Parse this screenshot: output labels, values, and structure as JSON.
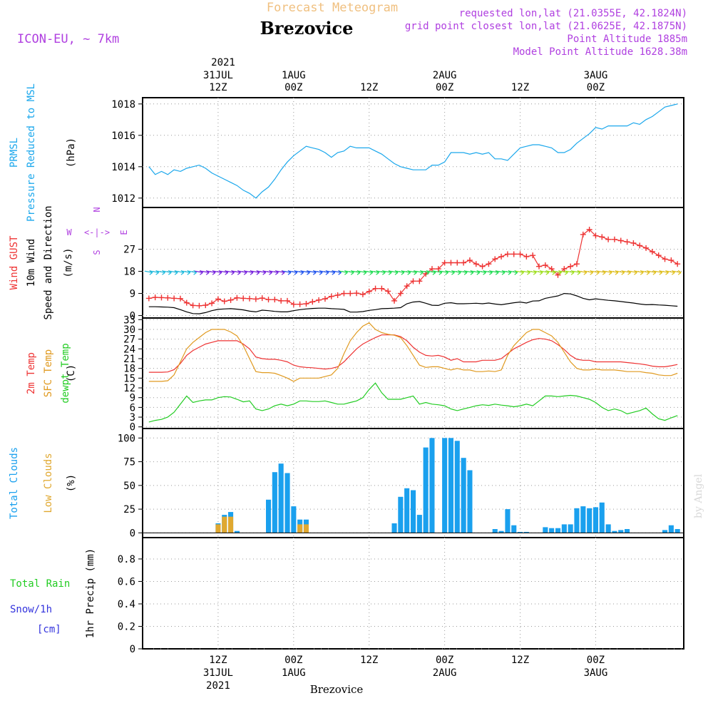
{
  "colors": {
    "pressure": "#1aa7ec",
    "gust": "#ee3333",
    "wind_speed": "#000000",
    "temp2m": "#ee3333",
    "sfc_temp": "#e09a20",
    "dewpoint": "#22cc22",
    "total_clouds": "#1aa0ee",
    "low_clouds": "#e0a830",
    "rain": "#22cc22",
    "snow": "#3333dd",
    "header_info": "#b040e0",
    "title_faded": "#f0c080",
    "grid": "#999999"
  },
  "header": {
    "title_faded": "Forecast Meteogram",
    "station": "Brezovice",
    "model": "ICON-EU, ~ 7km",
    "requested": "requested lon,lat (21.0355E, 42.1824N)",
    "grid_point": "grid point closest lon,lat (21.0625E, 42.1875N)",
    "point_altitude": "Point Altitude 1885m",
    "model_altitude": "Model Point Altitude 1628.38m",
    "watermark": "by Angel"
  },
  "time_axis": {
    "top_year": "2021",
    "top_labels": [
      {
        "h": 12,
        "l1": "31JUL",
        "l2": "12Z"
      },
      {
        "h": 24,
        "l1": "1AUG",
        "l2": "00Z"
      },
      {
        "h": 36,
        "l1": "",
        "l2": "12Z"
      },
      {
        "h": 48,
        "l1": "2AUG",
        "l2": "00Z"
      },
      {
        "h": 60,
        "l1": "",
        "l2": "12Z"
      },
      {
        "h": 72,
        "l1": "3AUG",
        "l2": "00Z"
      }
    ],
    "bottom_labels": [
      {
        "h": 12,
        "l1": "12Z",
        "l2": "31JUL",
        "l3": "2021"
      },
      {
        "h": 24,
        "l1": "00Z",
        "l2": "1AUG",
        "l3": ""
      },
      {
        "h": 36,
        "l1": "12Z",
        "l2": "",
        "l3": ""
      },
      {
        "h": 48,
        "l1": "00Z",
        "l2": "2AUG",
        "l3": ""
      },
      {
        "h": 60,
        "l1": "12Z",
        "l2": "",
        "l3": ""
      },
      {
        "h": 72,
        "l1": "00Z",
        "l2": "3AUG",
        "l3": ""
      }
    ],
    "footer_station": "Brezovice"
  },
  "wind_compass": {
    "w": "W",
    "e": "E",
    "n": "N",
    "s": "S",
    "sep": "<-|->"
  },
  "chart_data": [
    {
      "type": "line",
      "id": "pressure",
      "title": "PRMSL Pressure Reduced to MSL",
      "label_lines": [
        "PRMSL",
        "Pressure Reduced to MSL"
      ],
      "ylabel": "(hPa)",
      "ylim": [
        1011.4,
        1018.4
      ],
      "yticks": [
        1012,
        1014,
        1016,
        1018
      ],
      "hours_start": 1,
      "hours_step": 1,
      "series": [
        {
          "name": "PRMSL",
          "color_key": "pressure",
          "values": [
            1014.0,
            1013.5,
            1013.7,
            1013.5,
            1013.8,
            1013.7,
            1013.9,
            1014.0,
            1014.1,
            1013.9,
            1013.6,
            1013.4,
            1013.2,
            1013.0,
            1012.8,
            1012.5,
            1012.3,
            1012.0,
            1012.4,
            1012.7,
            1013.2,
            1013.8,
            1014.3,
            1014.7,
            1015.0,
            1015.3,
            1015.2,
            1015.1,
            1014.9,
            1014.6,
            1014.9,
            1015.0,
            1015.3,
            1015.2,
            1015.2,
            1015.2,
            1015.0,
            1014.8,
            1014.5,
            1014.2,
            1014.0,
            1013.9,
            1013.8,
            1013.8,
            1013.8,
            1014.1,
            1014.1,
            1014.3,
            1014.9,
            1014.9,
            1014.9,
            1014.8,
            1014.9,
            1014.8,
            1014.9,
            1014.5,
            1014.5,
            1014.4,
            1014.8,
            1015.2,
            1015.3,
            1015.4,
            1015.4,
            1015.3,
            1015.2,
            1014.9,
            1014.9,
            1015.1,
            1015.5,
            1015.8,
            1016.1,
            1016.5,
            1016.4,
            1016.6,
            1016.6,
            1016.6,
            1016.6,
            1016.8,
            1016.7,
            1017.0,
            1017.2,
            1017.5,
            1017.8,
            1017.9,
            1018.0
          ]
        }
      ]
    },
    {
      "type": "line",
      "id": "wind",
      "title": "Wind GUST / 10m Wind Speed and Direction",
      "label_lines": [
        "Wind GUST",
        "10m Wind",
        "Speed and Direction"
      ],
      "ylabel": "(m/s)",
      "ylim": [
        -1,
        44
      ],
      "yticks": [
        0,
        9,
        18,
        27
      ],
      "hours_start": 1,
      "hours_step": 1,
      "series": [
        {
          "name": "Wind GUST",
          "color_key": "gust",
          "marker": "plus",
          "values": [
            7,
            7.4,
            7.3,
            7.2,
            7.0,
            6.9,
            5.2,
            4.1,
            4.0,
            4.2,
            5.0,
            6.7,
            5.8,
            6.3,
            7.2,
            7.0,
            6.9,
            6.7,
            7.1,
            6.5,
            6.5,
            6.0,
            6.0,
            4.6,
            4.6,
            4.8,
            5.6,
            6.3,
            6.8,
            7.8,
            8.3,
            9.0,
            9.0,
            9.1,
            8.6,
            9.8,
            11.0,
            11.0,
            9.9,
            6.0,
            9.0,
            12.0,
            14.0,
            14.0,
            17.0,
            19.0,
            19.0,
            21.5,
            21.5,
            21.5,
            21.5,
            22.5,
            21.0,
            20.0,
            21.0,
            23.0,
            24.0,
            25.0,
            25.0,
            25.0,
            24.0,
            24.5,
            20.0,
            20.5,
            19.0,
            16.5,
            19.0,
            20.0,
            21.0,
            33.0,
            35.0,
            32.5,
            32.0,
            31.0,
            31.0,
            30.5,
            30.0,
            29.5,
            28.5,
            27.5,
            26.0,
            24.5,
            23.0,
            22.5,
            21.0
          ]
        },
        {
          "name": "10m Wind Speed",
          "color_key": "wind_speed",
          "values": [
            3.6,
            3.6,
            3.5,
            3.4,
            3.2,
            2.4,
            1.5,
            0.8,
            0.7,
            1.2,
            2.0,
            2.5,
            2.7,
            2.8,
            2.6,
            2.3,
            1.8,
            1.5,
            2.2,
            2.0,
            1.7,
            1.5,
            1.5,
            2.0,
            2.4,
            2.7,
            2.9,
            3.0,
            3.0,
            2.8,
            2.7,
            2.5,
            1.4,
            1.4,
            1.6,
            2.1,
            2.4,
            2.8,
            2.9,
            3.0,
            3.2,
            4.8,
            5.5,
            5.7,
            5.0,
            4.2,
            4.1,
            5.0,
            5.2,
            4.8,
            4.8,
            4.9,
            5.0,
            4.8,
            5.1,
            4.7,
            4.4,
            4.8,
            5.2,
            5.5,
            5.1,
            5.9,
            6.0,
            7.0,
            7.5,
            8.0,
            9.0,
            8.8,
            8.0,
            7.0,
            6.4,
            6.8,
            6.5,
            6.2,
            6.0,
            5.7,
            5.4,
            5.1,
            4.7,
            4.4,
            4.5,
            4.3,
            4.2,
            4.0,
            3.8
          ]
        }
      ],
      "direction_barbs_y": 17.5
    },
    {
      "type": "line",
      "id": "temperature",
      "title": "2m Temp / SFC Temp / dewpt Temp",
      "label_lines": [
        "2m Temp",
        "SFC Temp",
        "dewpt Temp"
      ],
      "ylabel": "(C)",
      "ylim": [
        -0.5,
        33.5
      ],
      "yticks": [
        0,
        3,
        6,
        9,
        12,
        15,
        18,
        21,
        24,
        27,
        30,
        33
      ],
      "hours_start": 1,
      "hours_step": 1,
      "series": [
        {
          "name": "2m Temp",
          "color_key": "temp2m",
          "values": [
            16.8,
            16.8,
            16.8,
            16.9,
            17.6,
            19.5,
            22.0,
            23.5,
            24.5,
            25.5,
            26.0,
            26.5,
            26.5,
            26.5,
            26.5,
            25.5,
            24.0,
            21.5,
            21.0,
            20.8,
            20.8,
            20.5,
            20.0,
            19.0,
            18.5,
            18.3,
            18.2,
            18.0,
            17.8,
            18.0,
            18.5,
            20.0,
            22.0,
            24.0,
            25.5,
            26.5,
            27.5,
            28.3,
            28.3,
            28.3,
            27.8,
            26.5,
            24.5,
            23.0,
            22.0,
            21.8,
            22.0,
            21.5,
            20.5,
            21.0,
            20.0,
            20.0,
            20.0,
            20.5,
            20.5,
            20.5,
            21.0,
            22.5,
            24.0,
            25.0,
            26.0,
            26.8,
            27.2,
            27.0,
            26.5,
            25.3,
            23.8,
            22.0,
            20.8,
            20.5,
            20.5,
            20.0,
            20.0,
            20.0,
            20.0,
            20.0,
            19.8,
            19.6,
            19.4,
            19.1,
            18.7,
            18.5,
            18.5,
            18.8,
            19.2
          ]
        },
        {
          "name": "SFC Temp",
          "color_key": "sfc_temp",
          "values": [
            14.0,
            14.0,
            14.0,
            14.2,
            16.0,
            20.0,
            24.0,
            26.0,
            27.5,
            29.0,
            30.0,
            30.0,
            30.0,
            29.2,
            28.0,
            25.0,
            21.0,
            17.0,
            16.7,
            16.7,
            16.5,
            15.8,
            15.0,
            14.0,
            15.0,
            15.0,
            15.0,
            15.0,
            15.5,
            16.0,
            18.0,
            22.5,
            26.5,
            29.0,
            31.0,
            32.0,
            30.0,
            29.0,
            28.5,
            28.2,
            27.5,
            25.0,
            22.0,
            19.0,
            18.3,
            18.5,
            18.5,
            18.0,
            17.5,
            18.0,
            17.5,
            17.5,
            17.0,
            17.0,
            17.2,
            17.0,
            17.5,
            22.0,
            25.0,
            27.0,
            29.0,
            30.0,
            30.0,
            29.0,
            28.0,
            26.0,
            23.0,
            20.0,
            18.0,
            17.5,
            17.5,
            17.8,
            17.5,
            17.5,
            17.5,
            17.3,
            17.0,
            17.0,
            17.0,
            16.7,
            16.5,
            16.0,
            15.8,
            15.8,
            16.5
          ]
        },
        {
          "name": "dewpt Temp",
          "color_key": "dewpoint",
          "values": [
            1.5,
            2.0,
            2.3,
            3.0,
            4.5,
            7.0,
            9.5,
            7.5,
            8.0,
            8.3,
            8.3,
            9.0,
            9.3,
            9.2,
            8.5,
            7.7,
            8.0,
            5.5,
            5.0,
            5.5,
            6.5,
            7.0,
            6.5,
            7.0,
            8.0,
            8.0,
            7.8,
            7.8,
            8.0,
            7.5,
            7.0,
            7.0,
            7.5,
            8.0,
            9.0,
            11.5,
            13.5,
            10.5,
            8.5,
            8.5,
            8.5,
            9.0,
            9.5,
            7.0,
            7.5,
            7.0,
            6.8,
            6.5,
            5.5,
            5.0,
            5.5,
            6.0,
            6.5,
            6.8,
            6.6,
            7.0,
            6.7,
            6.5,
            6.2,
            6.5,
            7.0,
            6.5,
            8.0,
            9.5,
            9.5,
            9.3,
            9.5,
            9.7,
            9.5,
            9.0,
            8.5,
            7.5,
            6.0,
            5.0,
            5.5,
            5.0,
            4.0,
            4.5,
            5.0,
            5.8,
            4.0,
            2.5,
            2.0,
            2.8,
            3.5
          ]
        }
      ]
    },
    {
      "type": "bar",
      "id": "clouds",
      "title": "Total Clouds / Low Clouds",
      "label_lines": [
        "Total Clouds",
        "Low Clouds"
      ],
      "ylabel": "(%)",
      "ylim": [
        -5,
        110
      ],
      "yticks": [
        0,
        25,
        50,
        75,
        100
      ],
      "hours_start": 1,
      "hours_step": 1,
      "series": [
        {
          "name": "Total Clouds",
          "color_key": "total_clouds",
          "values": [
            0,
            0,
            0,
            0,
            0,
            0,
            0,
            0,
            0,
            0,
            0,
            10,
            19,
            22,
            2,
            0,
            0,
            0,
            0,
            35,
            64,
            73,
            63,
            28,
            14,
            14,
            0,
            0,
            0,
            0,
            0,
            0,
            0,
            0,
            0,
            0,
            0,
            0,
            0,
            10,
            38,
            47,
            45,
            19,
            90,
            100,
            0,
            100,
            100,
            97,
            79,
            66,
            0,
            0,
            0,
            4,
            2,
            25,
            8,
            1,
            1,
            0,
            0,
            6,
            5,
            5,
            9,
            9,
            26,
            28,
            26,
            27,
            32,
            9,
            2,
            3,
            4,
            0,
            0,
            0,
            0,
            0,
            3,
            8,
            4
          ]
        },
        {
          "name": "Low Clouds",
          "color_key": "low_clouds",
          "values": [
            0,
            0,
            0,
            0,
            0,
            0,
            0,
            0,
            0,
            0,
            0,
            9,
            17,
            17,
            0,
            0,
            0,
            0,
            0,
            0,
            0,
            0,
            0,
            0,
            9,
            9,
            0,
            0,
            0,
            0,
            0,
            0,
            0,
            0,
            0,
            0,
            0,
            0,
            0,
            0,
            0,
            0,
            0,
            0,
            0,
            0,
            0,
            0,
            0,
            0,
            0,
            0,
            0,
            0,
            0,
            0,
            0,
            0,
            0,
            0,
            0,
            0,
            0,
            0,
            0,
            0,
            0,
            0,
            0,
            0,
            0,
            0,
            0,
            0,
            0,
            0,
            0,
            0,
            0,
            0,
            0,
            0,
            0,
            0,
            0
          ]
        }
      ]
    },
    {
      "type": "bar",
      "id": "precip",
      "title": "Total Rain / Snow/1h",
      "label_lines": [
        "Total  Rain",
        "Snow/1h",
        "[cm]"
      ],
      "ylabel": "1hr Precip (mm)",
      "ylim": [
        0,
        0.99
      ],
      "yticks": [
        0,
        0.2,
        0.4,
        0.6,
        0.8
      ],
      "ytick_labels": [
        "0",
        "0.2",
        "0.4",
        "0.6",
        "0.8"
      ],
      "series": [
        {
          "name": "Total Rain",
          "color_key": "rain",
          "values": []
        },
        {
          "name": "Snow/1h",
          "color_key": "snow",
          "values": []
        }
      ]
    }
  ]
}
